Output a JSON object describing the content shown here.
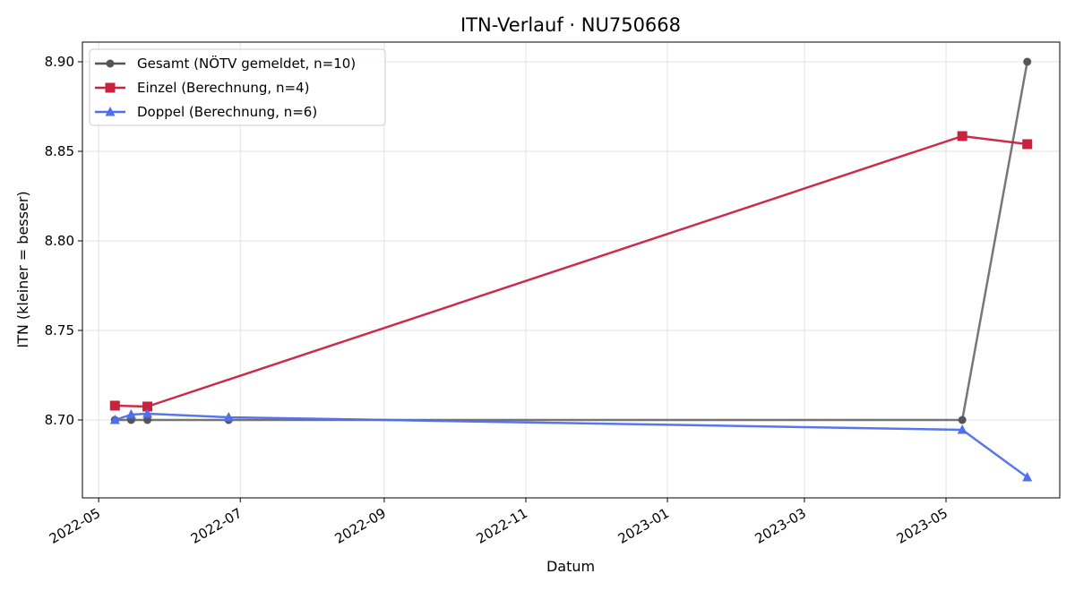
{
  "chart_data": {
    "type": "line",
    "title": "ITN-Verlauf · NU750668",
    "xlabel": "Datum",
    "ylabel": "ITN  (kleiner = besser)",
    "x_ticks": [
      "2022-05",
      "2022-07",
      "2022-09",
      "2022-11",
      "2023-01",
      "2023-03",
      "2023-05"
    ],
    "y_ticks": [
      "8.70",
      "8.75",
      "8.80",
      "8.85",
      "8.90"
    ],
    "xlim": [
      "2022-04-24",
      "2023-06-19"
    ],
    "ylim": [
      8.6565,
      8.911
    ],
    "grid": true,
    "legend_position": "upper left",
    "series": [
      {
        "name": "Gesamt (NÖTV gemeldet, n=10)",
        "color": "#555555",
        "marker": "circle",
        "points": [
          {
            "x": "2022-05-08",
            "y": 8.7
          },
          {
            "x": "2022-05-15",
            "y": 8.7
          },
          {
            "x": "2022-05-22",
            "y": 8.7
          },
          {
            "x": "2022-06-26",
            "y": 8.7
          },
          {
            "x": "2023-05-08",
            "y": 8.7
          },
          {
            "x": "2023-06-05",
            "y": 8.9
          }
        ]
      },
      {
        "name": "Einzel (Berechnung, n=4)",
        "color": "#c8223f",
        "marker": "square",
        "points": [
          {
            "x": "2022-05-08",
            "y": 8.708
          },
          {
            "x": "2022-05-22",
            "y": 8.7075
          },
          {
            "x": "2023-05-08",
            "y": 8.8585
          },
          {
            "x": "2023-06-05",
            "y": 8.854
          }
        ]
      },
      {
        "name": "Doppel (Berechnung, n=6)",
        "color": "#4f6fec",
        "marker": "triangle",
        "points": [
          {
            "x": "2022-05-08",
            "y": 8.7
          },
          {
            "x": "2022-05-15",
            "y": 8.703
          },
          {
            "x": "2022-05-22",
            "y": 8.7035
          },
          {
            "x": "2022-06-26",
            "y": 8.7015
          },
          {
            "x": "2023-05-08",
            "y": 8.6945
          },
          {
            "x": "2023-06-05",
            "y": 8.668
          }
        ]
      }
    ]
  }
}
